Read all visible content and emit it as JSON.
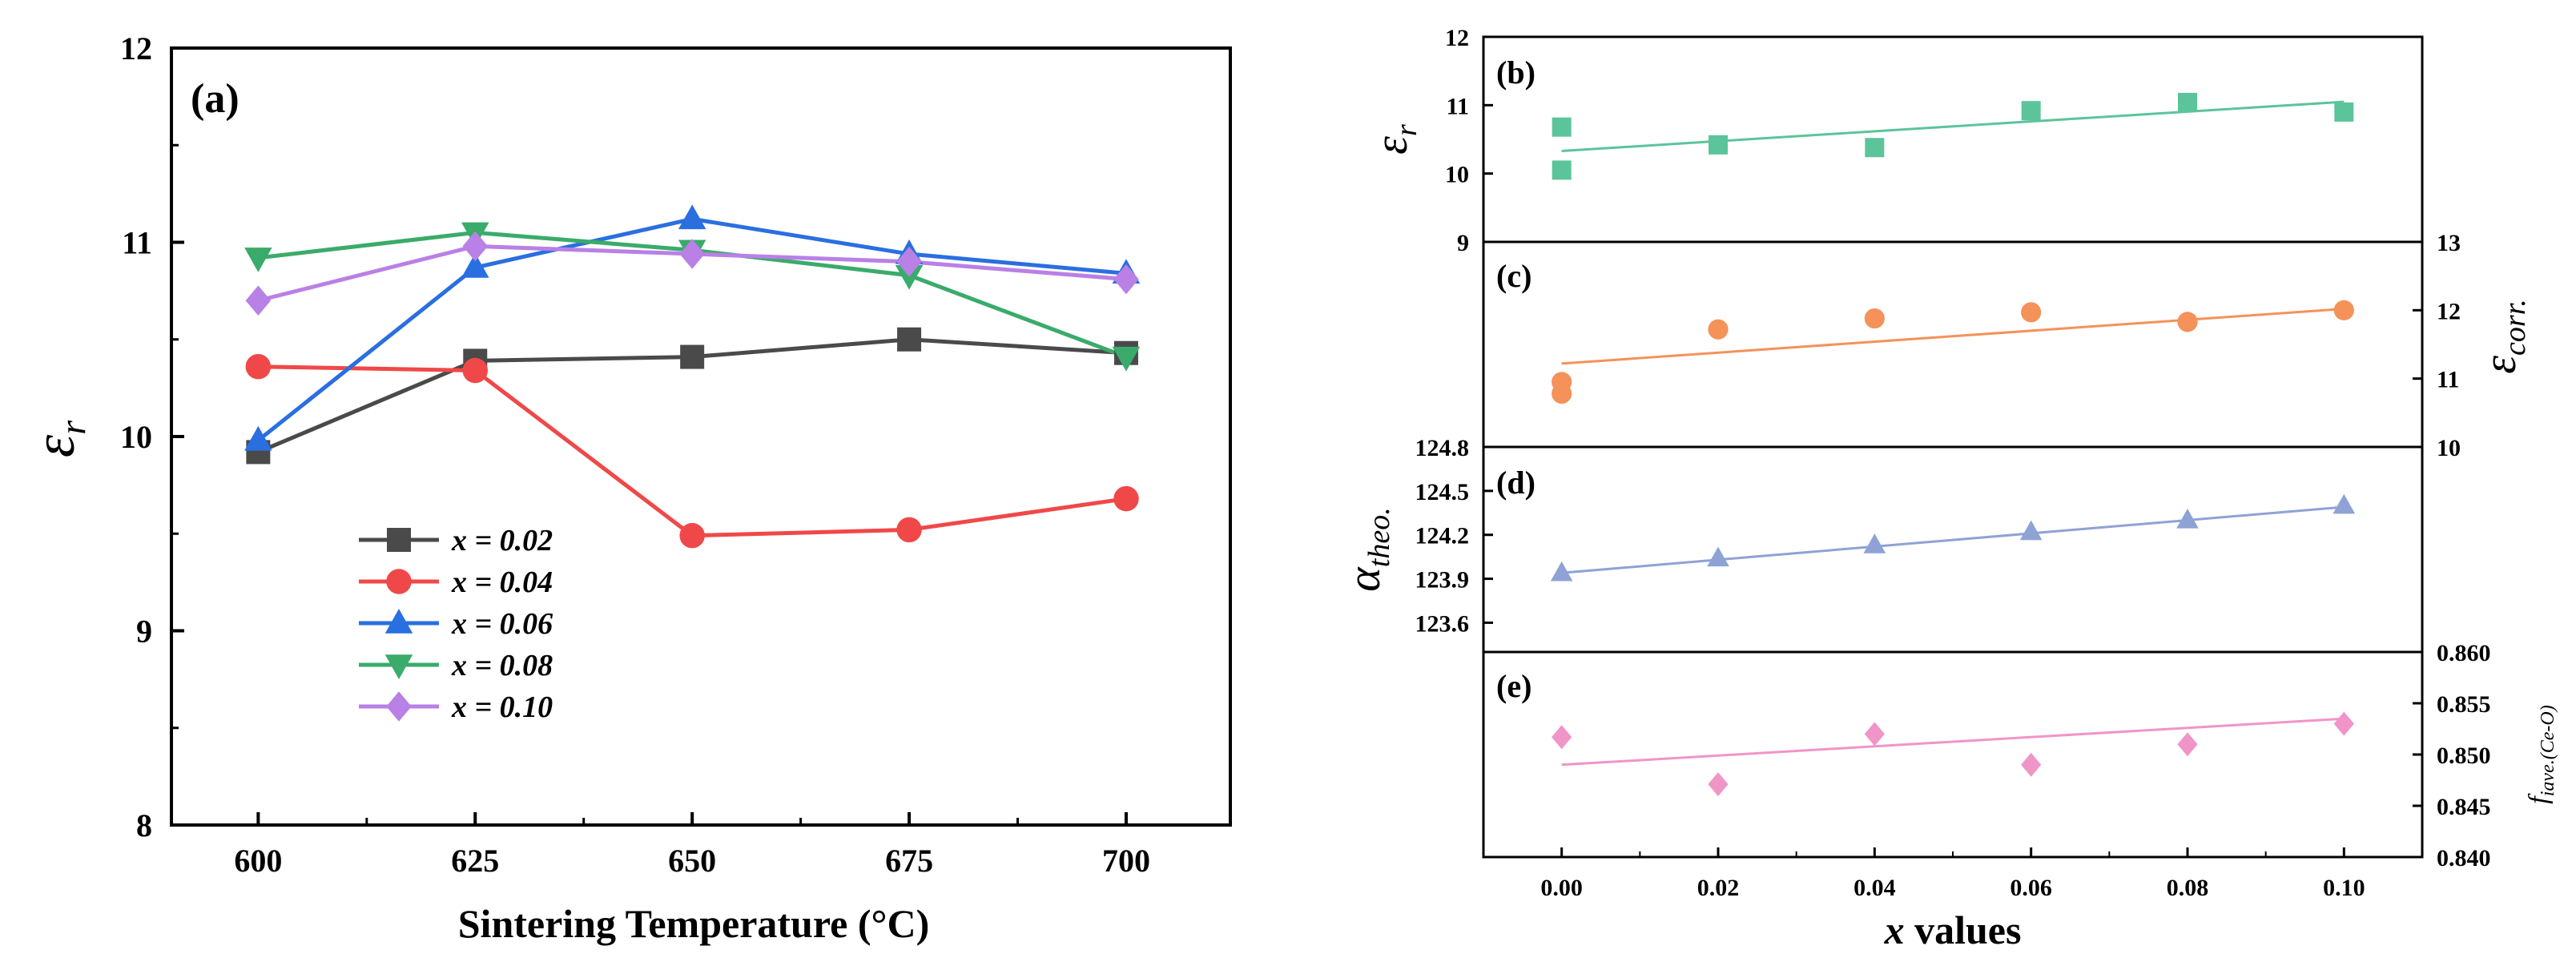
{
  "chart_data": [
    {
      "id": "a",
      "type": "line",
      "panel_label": "(a)",
      "title": "",
      "xlabel": "Sintering Temperature (°C)",
      "ylabel": "εr",
      "x": [
        600,
        625,
        650,
        675,
        700
      ],
      "xlim": [
        590,
        712
      ],
      "ylim": [
        8,
        12
      ],
      "xticks": [
        600,
        625,
        650,
        675,
        700
      ],
      "yticks": [
        8,
        9,
        10,
        11,
        12
      ],
      "legend_position": "bottom-left",
      "series": [
        {
          "name": "x = 0.02",
          "values": [
            9.92,
            10.39,
            10.41,
            10.5,
            10.43
          ],
          "color": "#4a4a4a",
          "marker": "square"
        },
        {
          "name": "x = 0.04",
          "values": [
            10.36,
            10.34,
            9.49,
            9.52,
            9.68
          ],
          "color": "#f04848",
          "marker": "circle"
        },
        {
          "name": "x = 0.06",
          "values": [
            9.98,
            10.87,
            11.12,
            10.94,
            10.84
          ],
          "color": "#2a6fe0",
          "marker": "triangle-up"
        },
        {
          "name": "x = 0.08",
          "values": [
            10.92,
            11.05,
            10.96,
            10.83,
            10.41
          ],
          "color": "#3aab6a",
          "marker": "triangle-down"
        },
        {
          "name": "x = 0.10",
          "values": [
            10.7,
            10.98,
            10.94,
            10.9,
            10.81
          ],
          "color": "#b980e6",
          "marker": "diamond"
        }
      ]
    },
    {
      "id": "b",
      "type": "scatter",
      "panel_label": "(b)",
      "ylabel": "εr",
      "yaxis_side": "left",
      "x": [
        0.0,
        0.0,
        0.02,
        0.04,
        0.06,
        0.08,
        0.1
      ],
      "y": [
        10.68,
        10.05,
        10.42,
        10.38,
        10.92,
        11.04,
        10.9
      ],
      "fit_line": {
        "x": [
          0.0,
          0.1
        ],
        "y": [
          10.33,
          11.05
        ]
      },
      "ylim": [
        9,
        12
      ],
      "yticks": [
        9,
        10,
        11,
        12
      ],
      "color": "#5cc49a",
      "marker": "square"
    },
    {
      "id": "c",
      "type": "scatter",
      "panel_label": "(c)",
      "ylabel": "εcorr.",
      "yaxis_side": "right",
      "x": [
        0.0,
        0.0,
        0.02,
        0.04,
        0.06,
        0.08,
        0.1
      ],
      "y": [
        10.95,
        10.78,
        11.72,
        11.88,
        11.97,
        11.83,
        12.0
      ],
      "fit_line": {
        "x": [
          0.0,
          0.1
        ],
        "y": [
          11.22,
          12.02
        ]
      },
      "ylim": [
        10,
        13
      ],
      "yticks": [
        10,
        11,
        12,
        13
      ],
      "color": "#f4925a",
      "marker": "circle"
    },
    {
      "id": "d",
      "type": "scatter",
      "panel_label": "(d)",
      "ylabel": "αtheo.",
      "yaxis_side": "left",
      "x": [
        0.0,
        0.02,
        0.04,
        0.06,
        0.08,
        0.1
      ],
      "y": [
        123.94,
        124.04,
        124.13,
        124.22,
        124.3,
        124.4
      ],
      "fit_line": {
        "x": [
          0.0,
          0.1
        ],
        "y": [
          123.94,
          124.39
        ]
      },
      "ylim": [
        123.4,
        124.8
      ],
      "yticks": [
        123.6,
        123.9,
        124.2,
        124.5,
        124.8
      ],
      "ytick_labels": [
        "123.6",
        "123.9",
        "124.2",
        "124.5",
        "124.8"
      ],
      "color": "#8ea2d6",
      "marker": "triangle-up"
    },
    {
      "id": "e",
      "type": "scatter",
      "panel_label": "(e)",
      "ylabel": "fiave.(Ce-O)",
      "yaxis_side": "right",
      "x": [
        0.0,
        0.02,
        0.04,
        0.06,
        0.08,
        0.1
      ],
      "y": [
        0.8517,
        0.8471,
        0.852,
        0.849,
        0.851,
        0.853
      ],
      "fit_line": {
        "x": [
          0.0,
          0.1
        ],
        "y": [
          0.849,
          0.8535
        ]
      },
      "ylim": [
        0.84,
        0.86
      ],
      "yticks": [
        0.84,
        0.845,
        0.85,
        0.855,
        0.86
      ],
      "ytick_labels": [
        "0.840",
        "0.845",
        "0.850",
        "0.855",
        "0.860"
      ],
      "color": "#f095c8",
      "marker": "diamond",
      "xlabel": "x values",
      "xticks": [
        0.0,
        0.02,
        0.04,
        0.06,
        0.08,
        0.1
      ],
      "xtick_labels": [
        "0.00",
        "0.02",
        "0.04",
        "0.06",
        "0.08",
        "0.10"
      ],
      "xlim": [
        -0.01,
        0.11
      ]
    }
  ]
}
